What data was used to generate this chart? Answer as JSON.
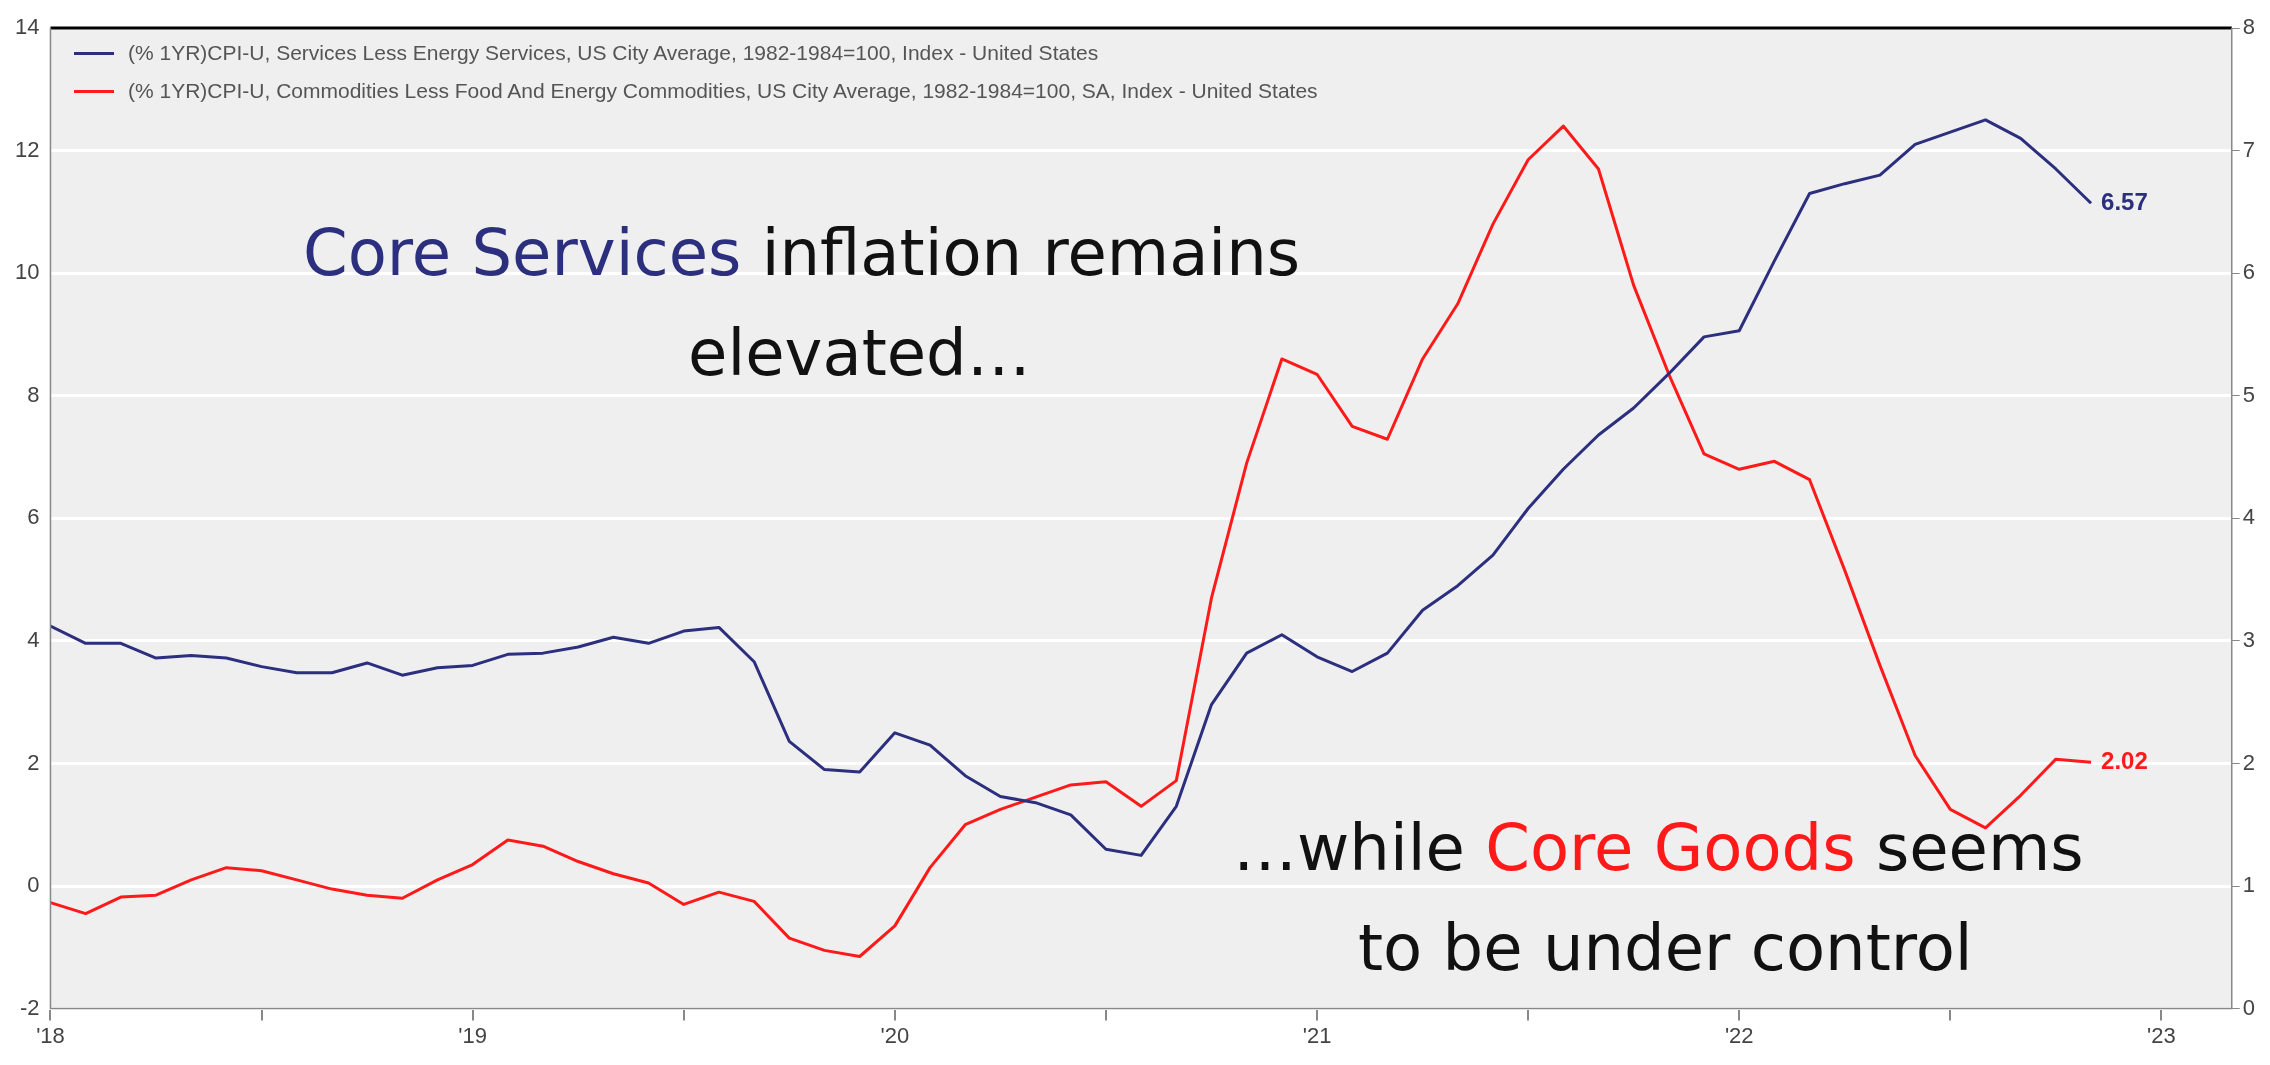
{
  "chart_data": {
    "type": "line",
    "x": [
      "2018-01",
      "2018-02",
      "2018-03",
      "2018-04",
      "2018-05",
      "2018-06",
      "2018-07",
      "2018-08",
      "2018-09",
      "2018-10",
      "2018-11",
      "2018-12",
      "2019-01",
      "2019-02",
      "2019-03",
      "2019-04",
      "2019-05",
      "2019-06",
      "2019-07",
      "2019-08",
      "2019-09",
      "2019-10",
      "2019-11",
      "2019-12",
      "2020-01",
      "2020-02",
      "2020-03",
      "2020-04",
      "2020-05",
      "2020-06",
      "2020-07",
      "2020-08",
      "2020-09",
      "2020-10",
      "2020-11",
      "2020-12",
      "2021-01",
      "2021-02",
      "2021-03",
      "2021-04",
      "2021-05",
      "2021-06",
      "2021-07",
      "2021-08",
      "2021-09",
      "2021-10",
      "2021-11",
      "2021-12",
      "2022-01",
      "2022-02",
      "2022-03",
      "2022-04",
      "2022-05",
      "2022-06",
      "2022-07",
      "2022-08",
      "2022-09",
      "2022-10",
      "2022-11"
    ],
    "series": [
      {
        "name": "(% 1YR)CPI-U, Services Less Energy Services, US City Average, 1982-1984=100, Index - United States",
        "color": "#2b2f7e",
        "axis": "y2",
        "values": [
          3.12,
          2.98,
          2.98,
          2.86,
          2.88,
          2.86,
          2.79,
          2.74,
          2.74,
          2.82,
          2.72,
          2.78,
          2.8,
          2.89,
          2.9,
          2.95,
          3.03,
          2.98,
          3.08,
          3.11,
          2.83,
          2.18,
          1.95,
          1.93,
          2.25,
          2.15,
          1.9,
          1.73,
          1.68,
          1.58,
          1.3,
          1.25,
          1.65,
          2.48,
          2.9,
          3.05,
          2.87,
          2.75,
          2.9,
          3.25,
          3.45,
          3.7,
          4.08,
          4.4,
          4.68,
          4.9,
          5.18,
          5.48,
          5.53,
          6.1,
          6.65,
          6.73,
          6.8,
          7.05,
          7.15,
          7.25,
          7.1,
          6.85,
          6.57
        ],
        "value_labels": [
          null,
          null,
          null,
          null,
          null,
          null,
          null,
          null,
          null,
          null,
          null,
          null,
          null,
          null,
          null,
          null,
          null,
          null,
          null,
          null,
          null,
          null,
          null,
          null,
          null,
          null,
          null,
          null,
          null,
          null,
          null,
          null,
          null,
          null,
          null,
          null,
          null,
          null,
          null,
          null,
          null,
          null,
          null,
          null,
          null,
          null,
          null,
          null,
          null,
          null,
          null,
          null,
          null,
          null,
          null,
          null,
          null,
          null,
          "6.57"
        ]
      },
      {
        "name": "(% 1YR)CPI-U, Commodities Less Food And Energy Commodities, US City Average, 1982-1984=100, SA, Index - United States",
        "color": "#ff1a1a",
        "values": [
          -0.27,
          -0.45,
          -0.18,
          -0.15,
          0.1,
          0.3,
          0.25,
          0.1,
          -0.05,
          -0.15,
          -0.2,
          0.1,
          0.35,
          0.75,
          0.65,
          0.4,
          0.2,
          0.05,
          -0.3,
          -0.1,
          -0.25,
          -0.85,
          -1.05,
          -1.15,
          -0.65,
          0.3,
          1.0,
          1.25,
          1.45,
          1.65,
          1.7,
          1.3,
          1.72,
          4.7,
          6.9,
          8.6,
          8.35,
          7.5,
          7.29,
          8.6,
          9.5,
          10.8,
          11.85,
          12.4,
          11.7,
          9.8,
          8.35,
          7.05,
          6.8,
          6.93,
          6.63,
          5.15,
          3.6,
          2.13,
          1.25,
          0.95,
          1.48,
          2.07,
          2.02
        ],
        "value_labels": [
          null,
          null,
          null,
          null,
          null,
          null,
          null,
          null,
          null,
          null,
          null,
          null,
          null,
          null,
          null,
          null,
          null,
          null,
          null,
          null,
          null,
          null,
          null,
          null,
          null,
          null,
          null,
          null,
          null,
          null,
          null,
          null,
          null,
          null,
          null,
          null,
          null,
          null,
          null,
          null,
          null,
          null,
          null,
          null,
          null,
          null,
          null,
          null,
          null,
          null,
          null,
          null,
          null,
          null,
          null,
          null,
          null,
          null,
          "2.02"
        ]
      }
    ],
    "xlim": [
      "2018-01",
      "2023-03"
    ],
    "xticks": [
      {
        "value": "2018",
        "label": "'18"
      },
      {
        "value": "2018-07",
        "label": null
      },
      {
        "value": "2019",
        "label": "'19"
      },
      {
        "value": "2019-07",
        "label": null
      },
      {
        "value": "2020",
        "label": "'20"
      },
      {
        "value": "2020-07",
        "label": null
      },
      {
        "value": "2021",
        "label": "'21"
      },
      {
        "value": "2021-07",
        "label": null
      },
      {
        "value": "2022",
        "label": "'22"
      },
      {
        "value": "2022-07",
        "label": null
      },
      {
        "value": "2023",
        "label": "'23"
      }
    ],
    "ylim": [
      -2,
      14
    ],
    "yticks": [
      -2,
      0,
      2,
      4,
      6,
      8,
      10,
      12,
      14
    ],
    "y2lim": [
      0,
      8
    ],
    "y2ticks": [
      0,
      1,
      2,
      3,
      4,
      5,
      6,
      7,
      8
    ],
    "grid": "y",
    "legend": "top left",
    "marker": "none",
    "line_style": "solid",
    "annotations": [
      "Core Services",
      "inflation remains",
      "elevated…",
      "…while",
      "Core Goods",
      "seems",
      "to be under control"
    ]
  }
}
